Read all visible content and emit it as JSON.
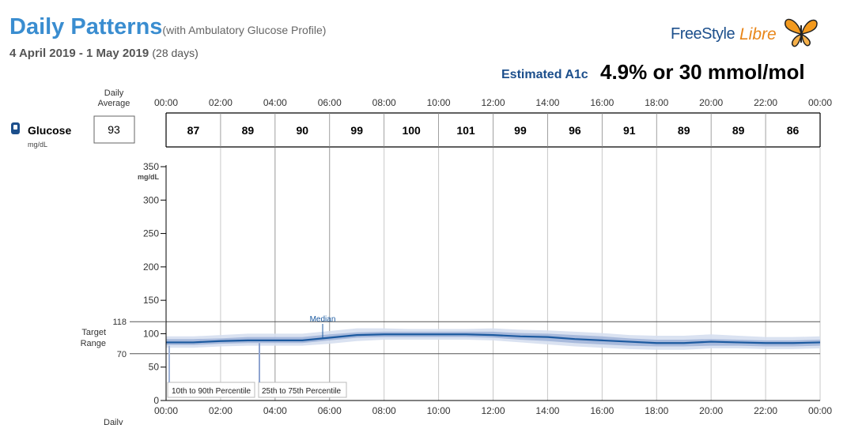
{
  "header": {
    "title": "Daily Patterns",
    "subtitle": "(with Ambulatory Glucose Profile)",
    "date_range": "4 April 2019 - 1 May 2019",
    "days": "(28 days)",
    "a1c_label": "Estimated A1c",
    "a1c_value": "4.9% or 30 mmol/mol"
  },
  "logo": {
    "brand_part1": "FreeStyle",
    "brand_part2": "Libre",
    "icon": "butterfly-icon"
  },
  "colors": {
    "median_line": "#1c5aa0",
    "band_25_75": "#9fb3d8",
    "band_10_90": "#d6dff0",
    "title": "#3a8dd0",
    "brand_blue": "#1c4f8c",
    "brand_orange": "#e8861a"
  },
  "chart_data": {
    "type": "area",
    "daily_average_label": "Daily Average",
    "metric_label": "Glucose",
    "metric_unit": "mg/dL",
    "metric_icon": "sensor-icon",
    "daily_average_value": "93",
    "time_ticks": [
      "00:00",
      "02:00",
      "04:00",
      "06:00",
      "08:00",
      "10:00",
      "12:00",
      "14:00",
      "16:00",
      "18:00",
      "20:00",
      "22:00",
      "00:00"
    ],
    "bin_averages": [
      "87",
      "89",
      "90",
      "99",
      "100",
      "101",
      "99",
      "96",
      "91",
      "89",
      "89",
      "86"
    ],
    "y_ticks": [
      350,
      300,
      250,
      200,
      150,
      100,
      50,
      0
    ],
    "y_unit": "mg/dL",
    "ylim": [
      0,
      350
    ],
    "xlim": [
      0,
      24
    ],
    "target_range_label": "Target Range",
    "target_range": [
      70,
      118
    ],
    "target_high_label": "118",
    "target_low_label": "70",
    "median_label": "Median",
    "legend_10_90": "10th to 90th Percentile",
    "legend_25_75": "25th to 75th Percentile",
    "bottom_label": "Daily",
    "x": [
      0,
      1,
      2,
      3,
      4,
      5,
      6,
      7,
      8,
      9,
      10,
      11,
      12,
      13,
      14,
      15,
      16,
      17,
      18,
      19,
      20,
      21,
      22,
      23,
      24
    ],
    "series": [
      {
        "name": "Median",
        "values": [
          87,
          87,
          89,
          90,
          90,
          90,
          94,
          98,
          99,
          99,
          99,
          99,
          98,
          96,
          95,
          92,
          90,
          88,
          86,
          86,
          88,
          87,
          86,
          86,
          87
        ]
      },
      {
        "name": "25th to 75th Percentile",
        "lower": [
          83,
          83,
          85,
          86,
          86,
          86,
          90,
          94,
          95,
          95,
          95,
          95,
          94,
          91,
          89,
          86,
          84,
          82,
          81,
          81,
          82,
          82,
          81,
          81,
          82
        ],
        "upper": [
          92,
          92,
          93,
          95,
          95,
          95,
          99,
          102,
          103,
          103,
          103,
          103,
          103,
          101,
          100,
          98,
          96,
          93,
          91,
          91,
          92,
          91,
          90,
          90,
          91
        ]
      },
      {
        "name": "10th to 90th Percentile",
        "lower": [
          79,
          79,
          81,
          82,
          82,
          82,
          85,
          89,
          91,
          91,
          91,
          91,
          90,
          87,
          84,
          81,
          79,
          77,
          76,
          76,
          78,
          78,
          77,
          77,
          78
        ],
        "upper": [
          96,
          96,
          98,
          100,
          100,
          100,
          104,
          108,
          108,
          107,
          107,
          107,
          108,
          106,
          105,
          103,
          101,
          98,
          97,
          97,
          99,
          97,
          95,
          95,
          96
        ]
      }
    ]
  }
}
